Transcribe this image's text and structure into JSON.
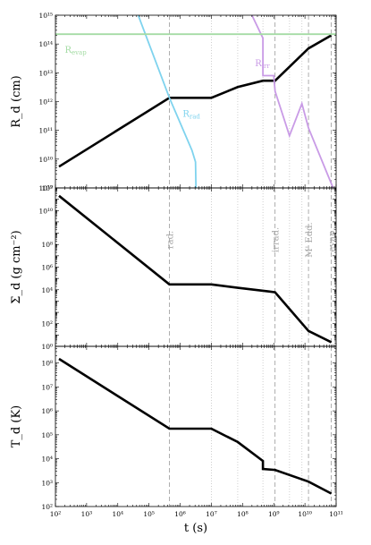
{
  "chart_data": [
    {
      "type": "line",
      "ylabel": "R_d (cm)",
      "yscale": "log",
      "xscale": "log",
      "xlim": [
        100,
        100000000000.0
      ],
      "ylim": [
        1000000000.0,
        1000000000000000.0
      ],
      "series": [
        {
          "key": "rd",
          "color": "#000000",
          "x": [
            130,
            450000.0,
            10000000.0,
            70000000.0,
            450000000.0,
            1100000000.0,
            13000000000.0,
            70000000000.0
          ],
          "y": [
            5500000000.0,
            1350000000000.0,
            1350000000000.0,
            3200000000000.0,
            5300000000000.0,
            5300000000000.0,
            70000000000000.0,
            200000000000000.0
          ]
        },
        {
          "key": "r_rad",
          "name": "R_rad",
          "color": "#7fd3ee",
          "x": [
            45000.0,
            450000.0,
            2400000.0,
            3100000.0,
            3200000.0
          ],
          "y": [
            1000000000000000.0,
            1350000000000.0,
            20000000000.0,
            8000000000.0,
            1000000000.0
          ]
        },
        {
          "key": "r_irr",
          "name": "R_irr",
          "color": "#c99be6",
          "x": [
            200000000.0,
            450000000.0,
            450000000.0,
            1000000000.0,
            1100000000.0,
            3200000000.0,
            8000000000.0,
            13000000000.0,
            80000000000.0
          ],
          "y": [
            1000000000000000.0,
            160000000000000.0,
            8000000000000.0,
            8000000000000.0,
            2300000000000.0,
            65000000000.0,
            850000000000.0,
            120000000000.0,
            1000000000.0
          ]
        },
        {
          "key": "r_evap",
          "name": "R_evap",
          "color": "#a5dca5",
          "x": [
            100,
            100000000000.0
          ],
          "y": [
            220000000000000.0,
            220000000000000.0
          ]
        }
      ],
      "annotations": [
        {
          "label": "R",
          "sub": "evap",
          "color": "#a5dca5",
          "x": 200.0,
          "y": 50000000000000.0
        },
        {
          "label": "R",
          "sub": "rad",
          "color": "#7fd3ee",
          "x": 1200000.0,
          "y": 300000000000.0
        },
        {
          "label": "R",
          "sub": "irr",
          "color": "#c99be6",
          "x": 250000000.0,
          "y": 17000000000000.0
        }
      ],
      "yticks": [
        "10⁹",
        "10¹⁰",
        "10¹¹",
        "10¹²",
        "10¹³",
        "10¹⁴",
        "10¹⁵"
      ]
    },
    {
      "type": "line",
      "ylabel": "Σ_d (g cm⁻²)",
      "yscale": "log",
      "xscale": "log",
      "xlim": [
        100,
        100000000000.0
      ],
      "ylim": [
        0.1,
        10000000000000.0
      ],
      "series": [
        {
          "key": "sigma",
          "color": "#000000",
          "x": [
            130,
            450000.0,
            10000000.0,
            70000000.0,
            700000000.0,
            1100000000.0,
            13000000000.0,
            70000000000.0
          ],
          "y": [
            2000000000000.0,
            30000.0,
            30000.0,
            15000.0,
            7000.0,
            6000.0,
            2.3,
            0.23
          ]
        }
      ],
      "phase_labels": [
        "rad.",
        "irrad.",
        "M' Edd.",
        "evap."
      ],
      "yticks": [
        "10⁰",
        "10²",
        "10⁴",
        "10⁶",
        "10⁸",
        "10¹⁰",
        "10¹²"
      ]
    },
    {
      "type": "line",
      "ylabel": "T_d (K)",
      "xlabel": "t (s)",
      "yscale": "log",
      "xscale": "log",
      "xlim": [
        100,
        100000000000.0
      ],
      "ylim": [
        100,
        500000000.0
      ],
      "series": [
        {
          "key": "temp",
          "color": "#000000",
          "x": [
            130,
            450000.0,
            10000000.0,
            70000000.0,
            450000000.0,
            450000000.0,
            1100000000.0,
            13000000000.0,
            70000000000.0
          ],
          "y": [
            150000000.0,
            180000.0,
            180000.0,
            50000.0,
            8000.0,
            3700.0,
            3400.0,
            1100.0,
            350
          ]
        }
      ],
      "yticks": [
        "10²",
        "10³",
        "10⁴",
        "10⁵",
        "10⁶",
        "10⁷",
        "10⁸"
      ]
    }
  ],
  "shared": {
    "xticks": [
      "10²",
      "10³",
      "10⁴",
      "10⁵",
      "10⁶",
      "10⁷",
      "10⁸",
      "10⁹",
      "10¹⁰",
      "10¹¹"
    ],
    "dashed_vlines": [
      450000.0,
      1100000000.0,
      13000000000.0,
      70000000000.0
    ],
    "dotted_vlines": [
      10000000.0,
      70000000.0,
      450000000.0,
      3200000000.0,
      8000000000.0
    ]
  },
  "colors": {
    "axis": "#000000",
    "dashed": "#9a9a9a",
    "dotted": "#c4c4c4",
    "phase_text": "#a8a8a8"
  }
}
